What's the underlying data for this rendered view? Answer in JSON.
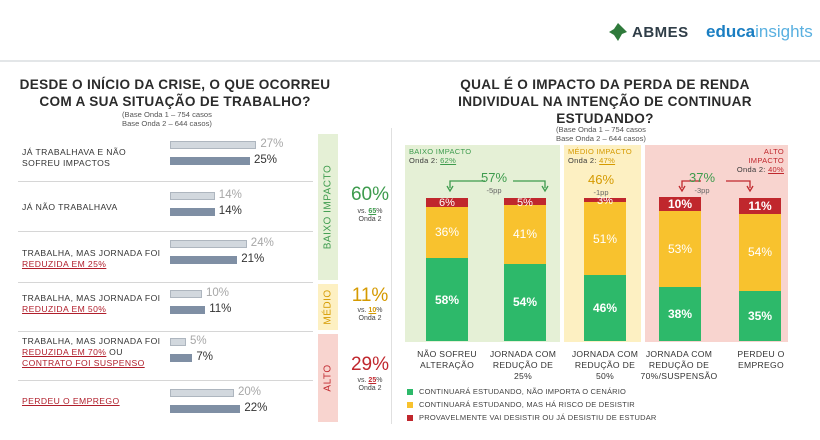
{
  "brand": {
    "abmes": "ABMES",
    "educa_bold": "educa",
    "educa_light": "insights"
  },
  "left": {
    "title_line1": "DESDE O INÍCIO DA CRISE, O QUE OCORREU",
    "title_line2": "COM A SUA SITUAÇÃO DE TRABALHO?",
    "base1": "(Base Onda 1 – 754 casos",
    "base2": "Base Onda 2 – 644 casos)",
    "rows": [
      {
        "l1": "JÁ TRABALHAVA E NÃO",
        "l2": "SOFREU IMPACTOS",
        "l3": "",
        "w1": "27%",
        "w2": "25%"
      },
      {
        "l1": "JÁ NÃO TRABALHAVA",
        "l2": "",
        "l3": "",
        "w1": "14%",
        "w2": "14%"
      },
      {
        "l1": "TRABALHA, MAS JORNADA FOI",
        "l2": "REDUZIDA EM 25%",
        "l3": "",
        "w1": "24%",
        "w2": "21%"
      },
      {
        "l1": "TRABALHA, MAS JORNADA FOI",
        "l2": "REDUZIDA EM 50%",
        "l3": "",
        "w1": "10%",
        "w2": "11%"
      },
      {
        "l1": "TRABALHA, MAS JORNADA FOI",
        "l2": "REDUZIDA EM 70%",
        "l2b": " OU",
        "l3": "CONTRATO FOI SUSPENSO",
        "w1": "5%",
        "w2": "7%"
      },
      {
        "l1": "PERDEU O EMPREGO",
        "l2": "",
        "l3": "",
        "w1": "20%",
        "w2": "22%"
      }
    ],
    "bands": [
      {
        "label": "BAIXO IMPACTO",
        "color": "#3d9b4d",
        "bg": "#e5f0d6",
        "big": "60%",
        "vs_pre": "vs. ",
        "vs_val": "65",
        "vs_post": "%",
        "onda": "Onda 2"
      },
      {
        "label": "MÉDIO",
        "color": "#d59a00",
        "bg": "#fdf0c2",
        "big": "11%",
        "vs_pre": "vs. ",
        "vs_val": "10",
        "vs_post": "%",
        "onda": "Onda 2"
      },
      {
        "label": "ALTO",
        "color": "#c0272d",
        "bg": "#f8d4cf",
        "big": "29%",
        "vs_pre": "vs. ",
        "vs_val": "25",
        "vs_post": "%",
        "onda": "Onda 2"
      }
    ]
  },
  "right": {
    "title_line1": "QUAL É O IMPACTO DA PERDA DE RENDA",
    "title_line2": "INDIVIDUAL NA INTENÇÃO DE CONTINUAR",
    "title_line3": "ESTUDANDO?",
    "base1": "(Base Onda 1 – 754 casos",
    "base2": "Base Onda 2 – 644 casos)",
    "groups": [
      {
        "title": "BAIXO IMPACTO",
        "onda_pre": "Onda 2: ",
        "onda_val": "62%",
        "total": "57%",
        "diff": "-5pp",
        "color": "#3d9b4d",
        "bg": "#e5f0d6"
      },
      {
        "title": "MÉDIO IMPACTO",
        "onda_pre": "Onda 2: ",
        "onda_val": "47%",
        "total": "46%",
        "diff": "-1pp",
        "color": "#d59a00",
        "bg": "#fdf0c2"
      },
      {
        "title": "ALTO IMPACTO",
        "onda_pre": "Onda 2: ",
        "onda_val": "40%",
        "total": "37%",
        "diff": "-3pp",
        "color": "#c0272d",
        "bg": "#f8d4cf"
      }
    ],
    "legend": [
      "CONTINUARÁ ESTUDANDO, NÃO IMPORTA O CENÁRIO",
      "CONTINUARÁ ESTUDANDO, MAS HÁ RISCO DE DESISTIR",
      "PROVAVELMENTE VAI DESISTIR OU JÁ DESISTIU DE ESTUDAR"
    ]
  },
  "chart_data": [
    {
      "type": "bar",
      "title": "DESDE O INÍCIO DA CRISE, O QUE OCORREU COM A SUA SITUAÇÃO DE TRABALHO?",
      "categories": [
        "JÁ TRABALHAVA E NÃO SOFREU IMPACTOS",
        "JÁ NÃO TRABALHAVA",
        "TRABALHA, MAS JORNADA FOI REDUZIDA EM 25%",
        "TRABALHA, MAS JORNADA FOI REDUZIDA EM 50%",
        "TRABALHA, MAS JORNADA FOI REDUZIDA EM 70% OU CONTRATO FOI SUSPENSO",
        "PERDEU O EMPREGO"
      ],
      "series": [
        {
          "values": [
            27,
            14,
            24,
            10,
            5,
            20
          ],
          "color": "#d2d8de"
        },
        {
          "values": [
            25,
            14,
            21,
            11,
            7,
            22
          ],
          "color": "#7f8fa4"
        }
      ]
    },
    {
      "type": "bar",
      "stacked": true,
      "title": "QUAL É O IMPACTO DA PERDA DE RENDA INDIVIDUAL NA INTENÇÃO DE CONTINUAR ESTUDANDO?",
      "categories": [
        "NÃO SOFREU ALTERAÇÃO",
        "JORNADA COM REDUÇÃO DE 25%",
        "JORNADA COM REDUÇÃO DE 50%",
        "JORNADA COM REDUÇÃO DE 70%/SUSPENSÃO",
        "PERDEU O EMPREGO"
      ],
      "series": [
        {
          "name": "CONTINUARÁ ESTUDANDO, NÃO IMPORTA O CENÁRIO",
          "color": "#2db96a",
          "values": [
            58,
            54,
            46,
            38,
            35
          ]
        },
        {
          "name": "CONTINUARÁ ESTUDANDO, MAS HÁ RISCO DE DESISTIR",
          "color": "#f8c22e",
          "values": [
            36,
            41,
            51,
            53,
            54
          ]
        },
        {
          "name": "PROVAVELMENTE VAI DESISTIR OU JÁ DESISTIU DE ESTUDAR",
          "color": "#c0272d",
          "values": [
            6,
            5,
            3,
            10,
            11
          ]
        }
      ],
      "labels": [
        "58%",
        "54%",
        "46%",
        "38%",
        "35%",
        "36%",
        "41%",
        "51%",
        "53%",
        "54%",
        "6%",
        "5%",
        "3%",
        "10%",
        "11%"
      ]
    }
  ]
}
